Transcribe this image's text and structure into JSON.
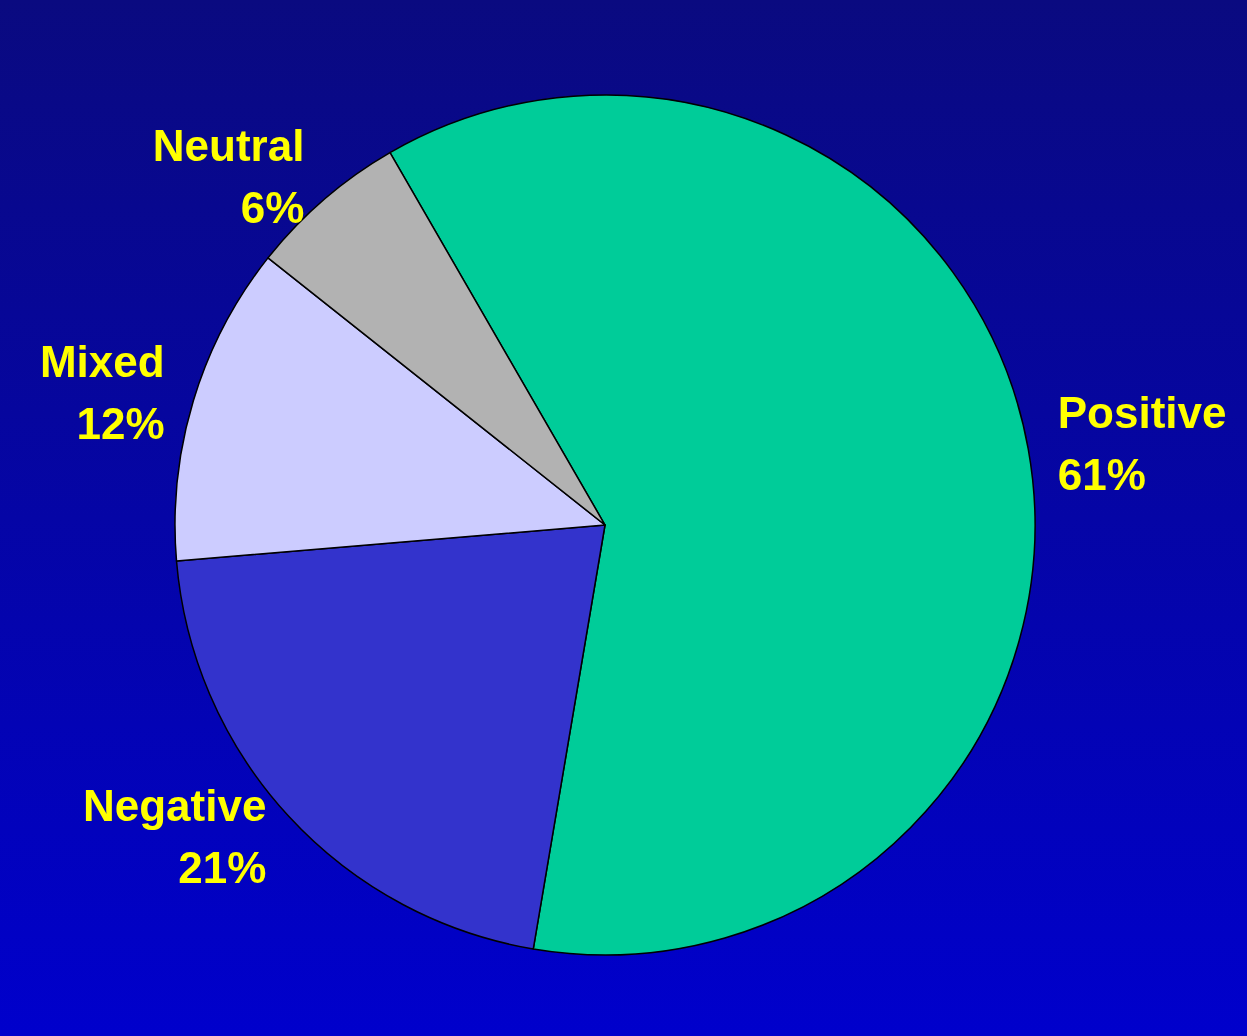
{
  "chart_data": {
    "type": "pie",
    "categories": [
      "Positive",
      "Negative",
      "Mixed",
      "Neutral"
    ],
    "values": [
      61,
      21,
      12,
      6
    ],
    "colors": [
      "#00cc99",
      "#3333cc",
      "#ccccff",
      "#b2b2b2"
    ],
    "value_labels": [
      "61%",
      "21%",
      "12%",
      "6%"
    ]
  }
}
